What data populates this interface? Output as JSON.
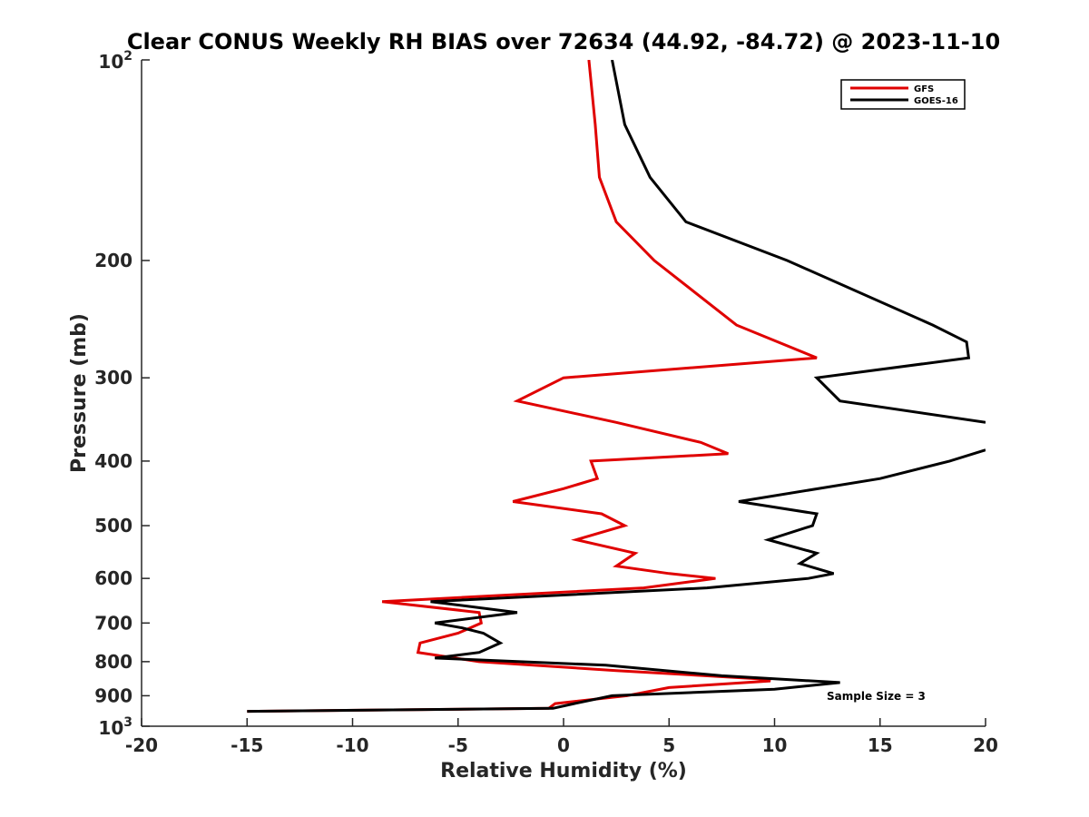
{
  "chart_data": {
    "type": "line",
    "title": "Clear CONUS Weekly RH BIAS over 72634 (44.92, -84.72) @ 2023-11-10",
    "xlabel": "Relative Humidity (%)",
    "ylabel": "Pressure (mb)",
    "xlim": [
      -20,
      20
    ],
    "ylim": [
      100,
      1000
    ],
    "yscale": "log",
    "y_reversed": true,
    "xticks": [
      -20,
      -15,
      -10,
      -5,
      0,
      5,
      10,
      15,
      20
    ],
    "xtick_labels": [
      "-20",
      "-15",
      "-10",
      "-5",
      "0",
      "5",
      "10",
      "15",
      "20"
    ],
    "yticks": [
      100,
      200,
      300,
      400,
      500,
      600,
      700,
      800,
      900,
      1000
    ],
    "ytick_labels": [
      {
        "base": "10",
        "exp": "2"
      },
      {
        "text": "200"
      },
      {
        "text": "300"
      },
      {
        "text": "400"
      },
      {
        "text": "500"
      },
      {
        "text": "600"
      },
      {
        "text": "700"
      },
      {
        "text": "800"
      },
      {
        "text": "900"
      },
      {
        "base": "10",
        "exp": "3"
      }
    ],
    "legend_position": "top-right",
    "annotation": "Sample Size = 3",
    "series": [
      {
        "name": "GFS",
        "color": "#e00000",
        "points": [
          [
            1.2,
            100
          ],
          [
            1.5,
            125
          ],
          [
            1.7,
            150
          ],
          [
            2.5,
            175
          ],
          [
            4.3,
            200
          ],
          [
            8.2,
            250
          ],
          [
            12.0,
            280
          ],
          [
            0.0,
            300
          ],
          [
            -2.2,
            325
          ],
          [
            2.5,
            350
          ],
          [
            6.5,
            375
          ],
          [
            7.8,
            390
          ],
          [
            1.3,
            400
          ],
          [
            1.6,
            425
          ],
          [
            0.0,
            440
          ],
          [
            -2.4,
            460
          ],
          [
            1.8,
            480
          ],
          [
            2.9,
            500
          ],
          [
            0.6,
            525
          ],
          [
            3.4,
            550
          ],
          [
            2.5,
            575
          ],
          [
            5.0,
            590
          ],
          [
            7.2,
            600
          ],
          [
            3.8,
            620
          ],
          [
            -8.6,
            650
          ],
          [
            -4.0,
            675
          ],
          [
            -3.9,
            700
          ],
          [
            -5.0,
            725
          ],
          [
            -6.8,
            750
          ],
          [
            -6.9,
            775
          ],
          [
            -4.0,
            800
          ],
          [
            2.5,
            825
          ],
          [
            9.6,
            850
          ],
          [
            9.8,
            855
          ],
          [
            5.0,
            875
          ],
          [
            3.0,
            900
          ],
          [
            -0.4,
            925
          ],
          [
            -0.7,
            940
          ],
          [
            -15.0,
            950
          ]
        ]
      },
      {
        "name": "GOES-16",
        "color": "#000000",
        "points": [
          [
            2.3,
            100
          ],
          [
            2.9,
            125
          ],
          [
            4.1,
            150
          ],
          [
            5.8,
            175
          ],
          [
            10.6,
            200
          ],
          [
            17.5,
            250
          ],
          [
            19.1,
            265
          ],
          [
            19.2,
            280
          ],
          [
            12.0,
            300
          ],
          [
            13.1,
            325
          ],
          [
            20.0,
            350
          ],
          [
            null,
            null
          ],
          [
            20.0,
            385
          ],
          [
            18.3,
            400
          ],
          [
            15.0,
            425
          ],
          [
            8.3,
            460
          ],
          [
            12.0,
            480
          ],
          [
            11.8,
            500
          ],
          [
            9.7,
            525
          ],
          [
            12.0,
            550
          ],
          [
            11.2,
            570
          ],
          [
            12.8,
            590
          ],
          [
            11.6,
            600
          ],
          [
            6.8,
            620
          ],
          [
            -6.3,
            650
          ],
          [
            -2.2,
            675
          ],
          [
            -6.1,
            700
          ],
          [
            -4.8,
            712
          ],
          [
            -3.8,
            725
          ],
          [
            -3.0,
            750
          ],
          [
            -4.0,
            775
          ],
          [
            -6.1,
            790
          ],
          [
            2.0,
            810
          ],
          [
            7.5,
            840
          ],
          [
            13.1,
            860
          ],
          [
            10.0,
            880
          ],
          [
            2.3,
            900
          ],
          [
            0.5,
            925
          ],
          [
            -0.5,
            940
          ],
          [
            -15.0,
            950
          ]
        ]
      }
    ]
  }
}
